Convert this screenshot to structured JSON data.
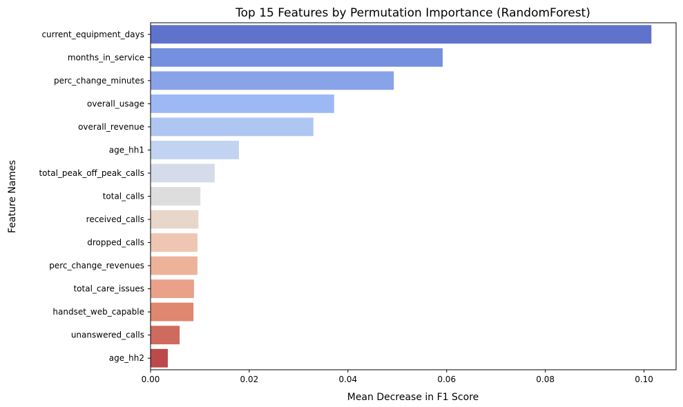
{
  "chart_data": {
    "type": "bar",
    "orientation": "horizontal",
    "title": "Top 15 Features by Permutation Importance (RandomForest)",
    "xlabel": "Mean Decrease in F1 Score",
    "ylabel": "Feature Names",
    "xlim": [
      0,
      0.1065
    ],
    "xticks": [
      0.0,
      0.02,
      0.04,
      0.06,
      0.08,
      0.1
    ],
    "xtick_labels": [
      "0.00",
      "0.02",
      "0.04",
      "0.06",
      "0.08",
      "0.10"
    ],
    "grid": false,
    "colormap": "coolwarm",
    "categories": [
      "current_equipment_days",
      "months_in_service",
      "perc_change_minutes",
      "overall_usage",
      "overall_revenue",
      "age_hh1",
      "total_peak_off_peak_calls",
      "total_calls",
      "received_calls",
      "dropped_calls",
      "perc_change_revenues",
      "total_care_issues",
      "handset_web_capable",
      "unanswered_calls",
      "age_hh2"
    ],
    "values": [
      0.1015,
      0.0592,
      0.0493,
      0.0372,
      0.033,
      0.0179,
      0.013,
      0.0101,
      0.0097,
      0.0095,
      0.0095,
      0.0088,
      0.0087,
      0.0059,
      0.0035
    ],
    "colors": [
      "#6073cc",
      "#7490de",
      "#89a3e9",
      "#9db9f5",
      "#b0c6f2",
      "#c2d3f1",
      "#d5dbe8",
      "#dddddd",
      "#e9d6cb",
      "#efc6b2",
      "#ecb39a",
      "#e9a189",
      "#e0876f",
      "#cf6a5e",
      "#bc4a4a"
    ]
  }
}
